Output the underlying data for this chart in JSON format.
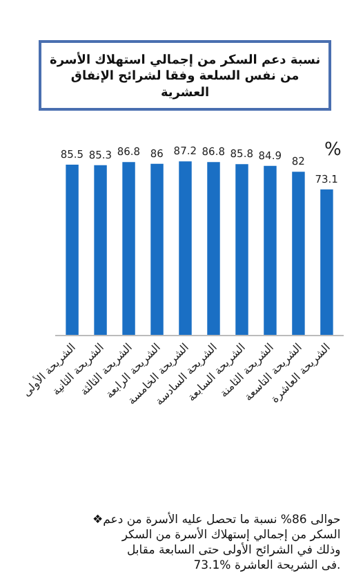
{
  "chart_data": {
    "type": "bar",
    "title": "نسبة دعم السكر من إجمالي استهلاك الأسرة من نفس السلعة وفقا لشرائح الإنفاق العشرية",
    "categories": [
      "الشريحة الأولى",
      "الشريحة الثانية",
      "الشريحة الثالثة",
      "الشريحة الرابعة",
      "الشريحة الخامسة",
      "الشريحة السادسة",
      "الشريحة السابعة",
      "الشريحة الثامنة",
      "الشريحة التاسعة",
      "الشريحة العاشرة"
    ],
    "values": [
      85.5,
      85.3,
      86.8,
      86,
      87.2,
      86.8,
      85.8,
      84.9,
      82,
      73.1
    ],
    "color": "#1a6fc4",
    "data_labels": true,
    "tick_labels": "x",
    "annotations": [
      "%",
      "❖حوالى 86% نسبة ما تحصل عليه الأسرة من دعم السكر من إجمالي إستهلاك الأسرة من السكر وذلك في الشرائح الأولى حتى السابعة مقابل 73.1% فى الشريحة العاشرة."
    ]
  }
}
